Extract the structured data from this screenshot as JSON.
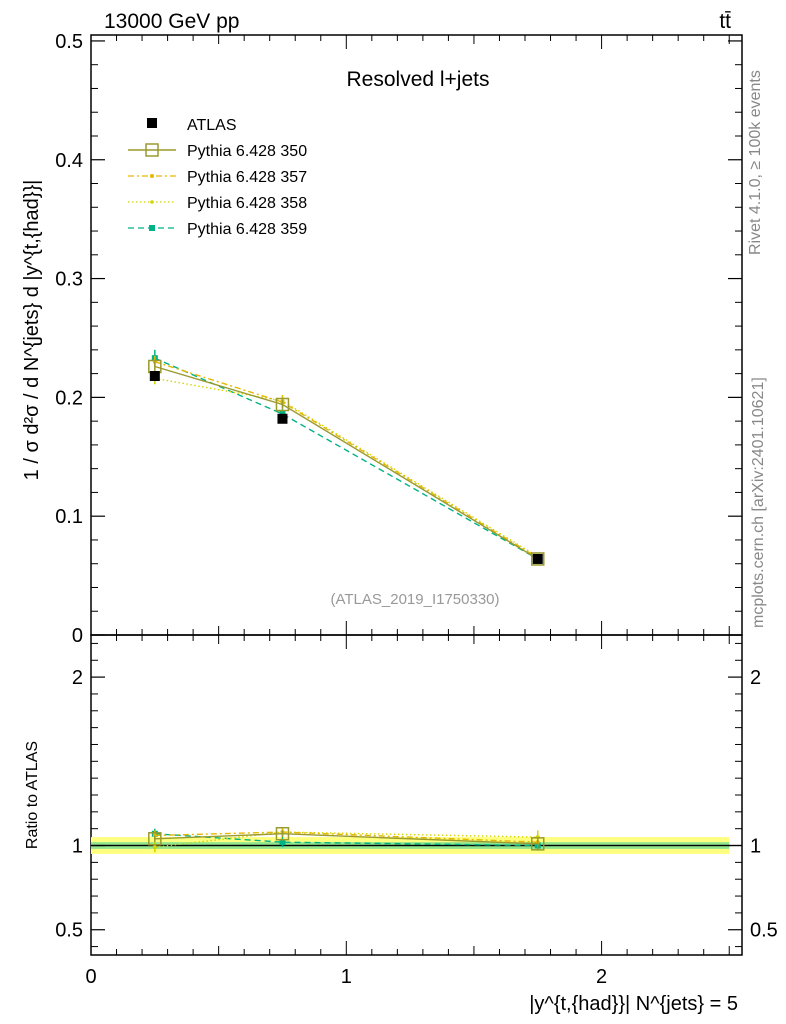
{
  "header": {
    "left": "13000 GeV pp",
    "right": "tt̄"
  },
  "side_text": {
    "rivet": "Rivet 4.1.0, ≥ 100k events",
    "mcplots": "mcplots.cern.ch [arXiv:2401.10621]"
  },
  "colors": {
    "atlas": "#000000",
    "p350": "#9a9a2e",
    "p357": "#e6b800",
    "p358": "#d4d400",
    "p359": "#00b386",
    "band_inner": "#8fe68f",
    "band_outer": "#ffff80"
  },
  "chart_data": [
    {
      "type": "line",
      "title": "Resolved l+jets",
      "analysis_label": "(ATLAS_2019_I1750330)",
      "ylabel": "1 / σ d²σ / d N^{jets} d |y^{t,{had}}|",
      "xlim": [
        0,
        2.55
      ],
      "ylim": [
        0,
        0.505
      ],
      "yticks": [
        0,
        0.1,
        0.2,
        0.3,
        0.4,
        0.5
      ],
      "ytick_labels": [
        "0",
        "0.1",
        "0.2",
        "0.3",
        "0.4",
        "0.5"
      ],
      "x": [
        0.25,
        0.75,
        1.75
      ],
      "series": [
        {
          "name": "ATLAS",
          "values": [
            0.218,
            0.182,
            0.064
          ],
          "errors": [
            0.004,
            0.004,
            0.002
          ]
        },
        {
          "name": "Pythia 6.428 350",
          "values": [
            0.226,
            0.194,
            0.064
          ],
          "errors": [
            0.004,
            0.004,
            0.002
          ]
        },
        {
          "name": "Pythia 6.428 357",
          "values": [
            0.23,
            0.196,
            0.065
          ],
          "errors": [
            0.005,
            0.005,
            0.002
          ]
        },
        {
          "name": "Pythia 6.428 358",
          "values": [
            0.216,
            0.197,
            0.066
          ],
          "errors": [
            0.005,
            0.005,
            0.002
          ]
        },
        {
          "name": "Pythia 6.428 359",
          "values": [
            0.233,
            0.186,
            0.064
          ],
          "errors": [
            0.007,
            0.004,
            0.002
          ]
        }
      ]
    },
    {
      "type": "line",
      "ylabel": "Ratio to ATLAS",
      "xlabel": "|y^{t,{had}}| N^{jets} = 5",
      "xlim": [
        0,
        2.55
      ],
      "ylim": [
        0.35,
        2.25
      ],
      "yticks": [
        0.5,
        1,
        2
      ],
      "ytick_labels": [
        "0.5",
        "1",
        "2"
      ],
      "xticks": [
        0,
        1,
        2
      ],
      "xtick_labels": [
        "0",
        "1",
        "2"
      ],
      "band_inner": 0.02,
      "band_outer": 0.05,
      "x": [
        0.25,
        0.75,
        1.75
      ],
      "series": [
        {
          "name": "Pythia 6.428 350",
          "values": [
            1.04,
            1.07,
            1.01
          ],
          "errors": [
            0.02,
            0.02,
            0.03
          ]
        },
        {
          "name": "Pythia 6.428 357",
          "values": [
            1.06,
            1.08,
            1.02
          ],
          "errors": [
            0.03,
            0.03,
            0.03
          ]
        },
        {
          "name": "Pythia 6.428 358",
          "values": [
            0.99,
            1.08,
            1.05
          ],
          "errors": [
            0.03,
            0.03,
            0.04
          ]
        },
        {
          "name": "Pythia 6.428 359",
          "values": [
            1.07,
            1.02,
            1.0
          ],
          "errors": [
            0.03,
            0.03,
            0.03
          ]
        }
      ]
    }
  ]
}
